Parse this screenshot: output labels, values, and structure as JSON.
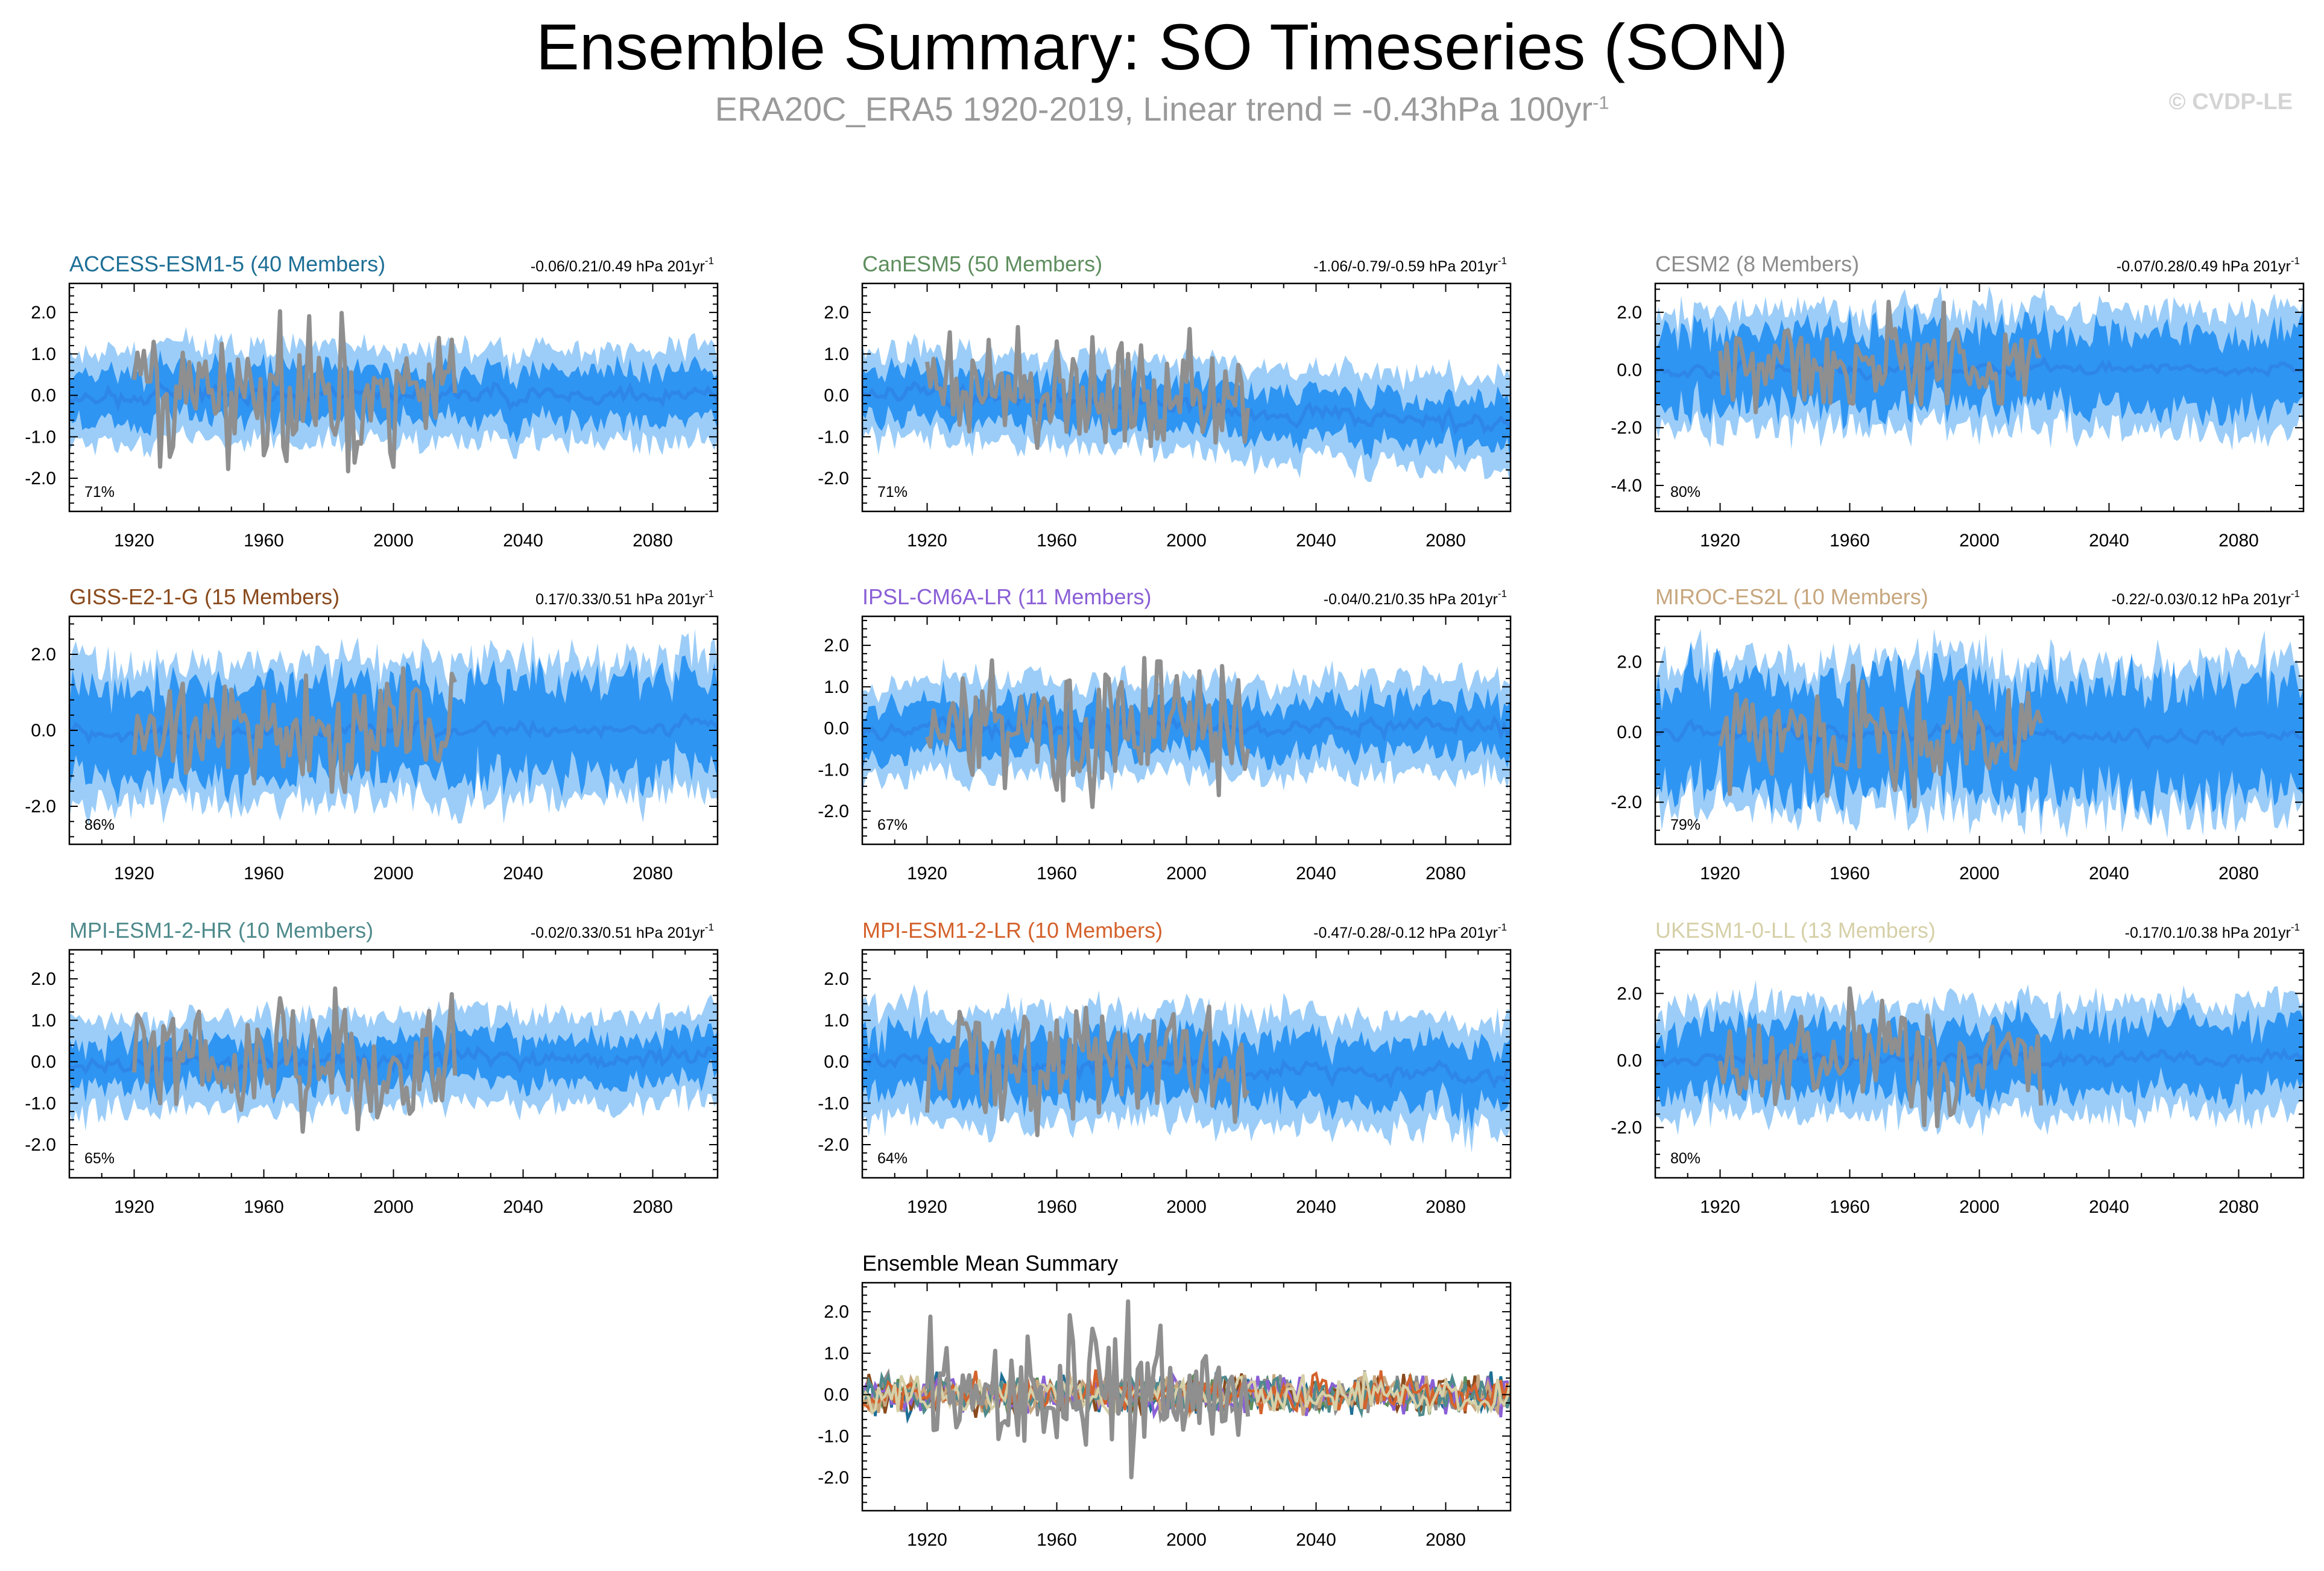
{
  "title": "Ensemble Summary: SO Timeseries (SON)",
  "subtitle_main": "ERA20C_ERA5 1920-2019, Linear trend = -0.43hPa 100yr",
  "subtitle_sup": "-1",
  "copyright": "© CVDP-LE",
  "colors": {
    "observations": "#8f8f8f",
    "ensemble_mean": "#2d86e8",
    "inner_range": "#2f95f2",
    "outer_range": "#9ccdf8"
  },
  "chart_data": [
    {
      "type": "area",
      "title": "ACCESS-ESM1-5 (40 Members)",
      "title_color": "#1e6f96",
      "trend_text": "-0.06/0.21/0.49 hPa 201yr",
      "trend_sup": "-1",
      "percent_text": "71%",
      "x_range": [
        1900,
        2100
      ],
      "ylim": [
        -2.8,
        2.7
      ],
      "y_ticks": [
        2.0,
        1.0,
        0.0,
        -1.0,
        -2.0
      ],
      "y_tick_labels": [
        "2.0",
        "1.0",
        "0.0",
        "-1.0",
        "-2.0"
      ],
      "x_ticks": [
        1920,
        1960,
        2000,
        2040,
        2080
      ],
      "x_tick_labels": [
        "1920",
        "1960",
        "2000",
        "2040",
        "2080"
      ],
      "series": [],
      "mean_trend": [
        0.0,
        0.0
      ],
      "spread_inner": 0.6,
      "spread_outer": 1.1,
      "obs_amplitude": 1.3,
      "seed": 11
    },
    {
      "type": "area",
      "title": "CanESM5 (50 Members)",
      "title_color": "#5e8e5e",
      "trend_text": "-1.06/-0.79/-0.59 hPa 201yr",
      "trend_sup": "-1",
      "percent_text": "71%",
      "x_range": [
        1900,
        2100
      ],
      "ylim": [
        -2.8,
        2.7
      ],
      "y_ticks": [
        2.0,
        1.0,
        0.0,
        -1.0,
        -2.0
      ],
      "y_tick_labels": [
        "2.0",
        "1.0",
        "0.0",
        "-1.0",
        "-2.0"
      ],
      "x_ticks": [
        1920,
        1960,
        2000,
        2040,
        2080
      ],
      "x_tick_labels": [
        "1920",
        "1960",
        "2000",
        "2040",
        "2080"
      ],
      "series": [],
      "mean_trend": [
        0.1,
        -0.7
      ],
      "spread_inner": 0.55,
      "spread_outer": 1.05,
      "obs_amplitude": 1.3,
      "seed": 23
    },
    {
      "type": "area",
      "title": "CESM2 (8 Members)",
      "title_color": "#8c8c8c",
      "trend_text": "-0.07/0.28/0.49 hPa 201yr",
      "trend_sup": "-1",
      "percent_text": "80%",
      "x_range": [
        1900,
        2100
      ],
      "ylim": [
        -4.9,
        3.0
      ],
      "y_ticks": [
        2.0,
        0.0,
        -2.0,
        -4.0
      ],
      "y_tick_labels": [
        "2.0",
        "0.0",
        "-2.0",
        "-4.0"
      ],
      "x_ticks": [
        1920,
        1960,
        2000,
        2040,
        2080
      ],
      "x_tick_labels": [
        "1920",
        "1960",
        "2000",
        "2040",
        "2080"
      ],
      "series": [],
      "mean_trend": [
        0.0,
        0.1
      ],
      "spread_inner": 1.3,
      "spread_outer": 2.0,
      "obs_amplitude": 1.4,
      "seed": 37
    },
    {
      "type": "area",
      "title": "GISS-E2-1-G (15 Members)",
      "title_color": "#8a4a1c",
      "trend_text": "0.17/0.33/0.51 hPa 201yr",
      "trend_sup": "-1",
      "percent_text": "86%",
      "x_range": [
        1900,
        2100
      ],
      "ylim": [
        -3.0,
        3.0
      ],
      "y_ticks": [
        2.0,
        0.0,
        -2.0
      ],
      "y_tick_labels": [
        "2.0",
        "0.0",
        "-2.0"
      ],
      "x_ticks": [
        1920,
        1960,
        2000,
        2040,
        2080
      ],
      "x_tick_labels": [
        "1920",
        "1960",
        "2000",
        "2040",
        "2080"
      ],
      "series": [],
      "mean_trend": [
        -0.1,
        0.1
      ],
      "spread_inner": 1.2,
      "spread_outer": 1.8,
      "obs_amplitude": 1.3,
      "seed": 41
    },
    {
      "type": "area",
      "title": "IPSL-CM6A-LR (11 Members)",
      "title_color": "#8a5fd6",
      "trend_text": "-0.04/0.21/0.35 hPa 201yr",
      "trend_sup": "-1",
      "percent_text": "67%",
      "x_range": [
        1900,
        2100
      ],
      "ylim": [
        -2.8,
        2.7
      ],
      "y_ticks": [
        2.0,
        1.0,
        0.0,
        -1.0,
        -2.0
      ],
      "y_tick_labels": [
        "2.0",
        "1.0",
        "0.0",
        "-1.0",
        "-2.0"
      ],
      "x_ticks": [
        1920,
        1960,
        2000,
        2040,
        2080
      ],
      "x_tick_labels": [
        "1920",
        "1960",
        "2000",
        "2040",
        "2080"
      ],
      "series": [],
      "mean_trend": [
        0.0,
        0.05
      ],
      "spread_inner": 0.6,
      "spread_outer": 1.1,
      "obs_amplitude": 1.3,
      "seed": 53
    },
    {
      "type": "area",
      "title": "MIROC-ES2L (10 Members)",
      "title_color": "#c7a67e",
      "trend_text": "-0.22/-0.03/0.12 hPa 201yr",
      "trend_sup": "-1",
      "percent_text": "79%",
      "x_range": [
        1900,
        2100
      ],
      "ylim": [
        -3.2,
        3.3
      ],
      "y_ticks": [
        2.0,
        0.0,
        -2.0
      ],
      "y_tick_labels": [
        "2.0",
        "0.0",
        "-2.0"
      ],
      "x_ticks": [
        1920,
        1960,
        2000,
        2040,
        2080
      ],
      "x_tick_labels": [
        "1920",
        "1960",
        "2000",
        "2040",
        "2080"
      ],
      "series": [],
      "mean_trend": [
        0.0,
        -0.1
      ],
      "spread_inner": 1.5,
      "spread_outer": 2.1,
      "obs_amplitude": 1.3,
      "seed": 67
    },
    {
      "type": "area",
      "title": "MPI-ESM1-2-HR (10 Members)",
      "title_color": "#4f8a8c",
      "trend_text": "-0.02/0.33/0.51 hPa 201yr",
      "trend_sup": "-1",
      "percent_text": "65%",
      "x_range": [
        1900,
        2100
      ],
      "ylim": [
        -2.8,
        2.7
      ],
      "y_ticks": [
        2.0,
        1.0,
        0.0,
        -1.0,
        -2.0
      ],
      "y_tick_labels": [
        "2.0",
        "1.0",
        "0.0",
        "-1.0",
        "-2.0"
      ],
      "x_ticks": [
        1920,
        1960,
        2000,
        2040,
        2080
      ],
      "x_tick_labels": [
        "1920",
        "1960",
        "2000",
        "2040",
        "2080"
      ],
      "series": [],
      "mean_trend": [
        -0.1,
        0.15
      ],
      "spread_inner": 0.55,
      "spread_outer": 1.05,
      "obs_amplitude": 1.3,
      "seed": 71
    },
    {
      "type": "area",
      "title": "MPI-ESM1-2-LR (10 Members)",
      "title_color": "#d4622c",
      "trend_text": "-0.47/-0.28/-0.12 hPa 201yr",
      "trend_sup": "-1",
      "percent_text": "64%",
      "x_range": [
        1900,
        2100
      ],
      "ylim": [
        -2.8,
        2.7
      ],
      "y_ticks": [
        2.0,
        1.0,
        0.0,
        -1.0,
        -2.0
      ],
      "y_tick_labels": [
        "2.0",
        "1.0",
        "0.0",
        "-1.0",
        "-2.0"
      ],
      "x_ticks": [
        1920,
        1960,
        2000,
        2040,
        2080
      ],
      "x_tick_labels": [
        "1920",
        "1960",
        "2000",
        "2040",
        "2080"
      ],
      "series": [],
      "mean_trend": [
        0.0,
        -0.3
      ],
      "spread_inner": 0.75,
      "spread_outer": 1.3,
      "obs_amplitude": 1.3,
      "seed": 83
    },
    {
      "type": "area",
      "title": "UKESM1-0-LL (13 Members)",
      "title_color": "#d6d0a8",
      "trend_text": "-0.17/0.1/0.38 hPa 201yr",
      "trend_sup": "-1",
      "percent_text": "80%",
      "x_range": [
        1900,
        2100
      ],
      "ylim": [
        -3.5,
        3.3
      ],
      "y_ticks": [
        2.0,
        0.0,
        -2.0
      ],
      "y_tick_labels": [
        "2.0",
        "0.0",
        "-2.0"
      ],
      "x_ticks": [
        1920,
        1960,
        2000,
        2040,
        2080
      ],
      "x_tick_labels": [
        "1920",
        "1960",
        "2000",
        "2040",
        "2080"
      ],
      "series": [],
      "mean_trend": [
        0.0,
        0.05
      ],
      "spread_inner": 1.0,
      "spread_outer": 1.6,
      "obs_amplitude": 1.3,
      "seed": 97
    },
    {
      "type": "line",
      "title": "Ensemble Mean Summary",
      "title_color": "#000000",
      "trend_text": "",
      "trend_sup": "",
      "percent_text": "",
      "x_range": [
        1900,
        2100
      ],
      "ylim": [
        -2.8,
        2.7
      ],
      "y_ticks": [
        2.0,
        1.0,
        0.0,
        -1.0,
        -2.0
      ],
      "y_tick_labels": [
        "2.0",
        "1.0",
        "0.0",
        "-1.0",
        "-2.0"
      ],
      "x_ticks": [
        1920,
        1960,
        2000,
        2040,
        2080
      ],
      "x_tick_labels": [
        "1920",
        "1960",
        "2000",
        "2040",
        "2080"
      ],
      "series_colors": [
        "#1e6f96",
        "#5e8e5e",
        "#8c8c8c",
        "#8a4a1c",
        "#8a5fd6",
        "#c7a67e",
        "#4f8a8c",
        "#d4622c",
        "#d6d0a8"
      ],
      "obs_amplitude": 1.3,
      "seed": 101
    }
  ]
}
